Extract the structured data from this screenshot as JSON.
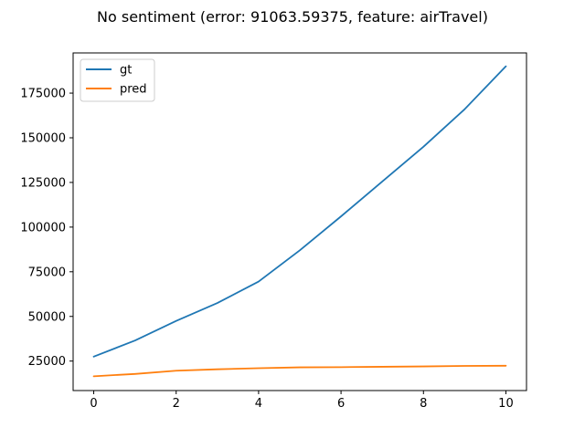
{
  "chart_data": {
    "type": "line",
    "title": "No sentiment (error: 91063.59375, feature: airTravel)",
    "xlabel": "",
    "ylabel": "",
    "xlim": [
      -0.5,
      10.5
    ],
    "ylim": [
      8500,
      197500
    ],
    "xticks": [
      0,
      2,
      4,
      6,
      8,
      10
    ],
    "yticks": [
      25000,
      50000,
      75000,
      100000,
      125000,
      150000,
      175000
    ],
    "grid": false,
    "legend_position": "top-left",
    "x": [
      0,
      1,
      2,
      3,
      4,
      5,
      6,
      7,
      8,
      9,
      10
    ],
    "series": [
      {
        "name": "gt",
        "color": "#1f77b4",
        "values": [
          27500,
          36500,
          47500,
          57500,
          69500,
          87000,
          106000,
          125500,
          145000,
          166000,
          190000
        ]
      },
      {
        "name": "pred",
        "color": "#ff7f0e",
        "values": [
          16500,
          17800,
          19600,
          20400,
          21000,
          21500,
          21600,
          21800,
          22000,
          22300,
          22400
        ]
      }
    ]
  }
}
